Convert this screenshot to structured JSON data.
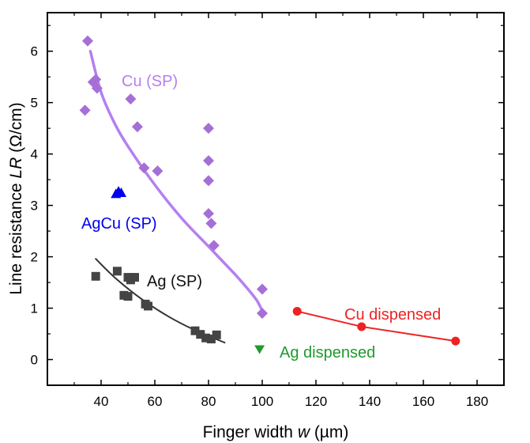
{
  "chart_data": {
    "type": "scatter",
    "xlabel": {
      "prefix": "Finger width ",
      "var": "w",
      "suffix": " (µm)"
    },
    "ylabel": {
      "prefix": "Line resistance ",
      "var": "LR",
      "suffix": " (Ω/cm)"
    },
    "xlim": [
      20,
      190
    ],
    "ylim": [
      -0.5,
      6.75
    ],
    "xticks": [
      40,
      60,
      80,
      100,
      120,
      140,
      160,
      180
    ],
    "yticks": [
      0,
      1,
      2,
      3,
      4,
      5,
      6
    ],
    "grid": false,
    "series": [
      {
        "name": "Cu (SP)",
        "marker": "diamond",
        "color": "#a66fd6",
        "fit_color": "#b57ff0",
        "points": [
          [
            35,
            6.2
          ],
          [
            37,
            5.4
          ],
          [
            38,
            5.45
          ],
          [
            38.5,
            5.28
          ],
          [
            34,
            4.85
          ],
          [
            51,
            5.07
          ],
          [
            53.5,
            4.53
          ],
          [
            56,
            3.73
          ],
          [
            61,
            3.67
          ],
          [
            80,
            4.5
          ],
          [
            80,
            3.87
          ],
          [
            80,
            3.48
          ],
          [
            80,
            2.84
          ],
          [
            81,
            2.65
          ],
          [
            82,
            2.22
          ],
          [
            100,
            1.37
          ],
          [
            100,
            0.9
          ]
        ],
        "fit": [
          [
            36,
            6.0
          ],
          [
            40,
            5.2
          ],
          [
            45,
            4.6
          ],
          [
            50,
            4.15
          ],
          [
            60,
            3.4
          ],
          [
            70,
            2.75
          ],
          [
            80,
            2.2
          ],
          [
            90,
            1.65
          ],
          [
            95,
            1.35
          ],
          [
            98,
            1.15
          ],
          [
            100,
            0.95
          ]
        ]
      },
      {
        "name": "AgCu (SP)",
        "marker": "triangle-up",
        "color": "#0000ee",
        "points": [
          [
            45.5,
            3.22
          ],
          [
            46.5,
            3.27
          ],
          [
            47.5,
            3.24
          ]
        ]
      },
      {
        "name": "Ag (SP)",
        "marker": "square",
        "color": "#444444",
        "fit_color": "#333333",
        "points": [
          [
            38,
            1.62
          ],
          [
            46,
            1.72
          ],
          [
            48.5,
            1.25
          ],
          [
            50,
            1.23
          ],
          [
            50,
            1.6
          ],
          [
            51,
            1.55
          ],
          [
            52.5,
            1.6
          ],
          [
            56.5,
            1.08
          ],
          [
            57.5,
            1.04
          ],
          [
            75,
            0.56
          ],
          [
            77,
            0.49
          ],
          [
            79,
            0.42
          ],
          [
            81,
            0.4
          ],
          [
            83,
            0.48
          ]
        ],
        "fit": [
          [
            38,
            1.96
          ],
          [
            45,
            1.6
          ],
          [
            55,
            1.18
          ],
          [
            65,
            0.84
          ],
          [
            75,
            0.57
          ],
          [
            86,
            0.33
          ]
        ]
      },
      {
        "name": "Ag dispensed",
        "marker": "triangle-down",
        "color": "#1f9a2e",
        "points": [
          [
            99,
            0.2
          ]
        ]
      },
      {
        "name": "Cu dispensed",
        "marker": "circle",
        "color": "#ee2222",
        "line": true,
        "points": [
          [
            113,
            0.94
          ],
          [
            137,
            0.64
          ],
          [
            172,
            0.36
          ]
        ]
      }
    ]
  }
}
